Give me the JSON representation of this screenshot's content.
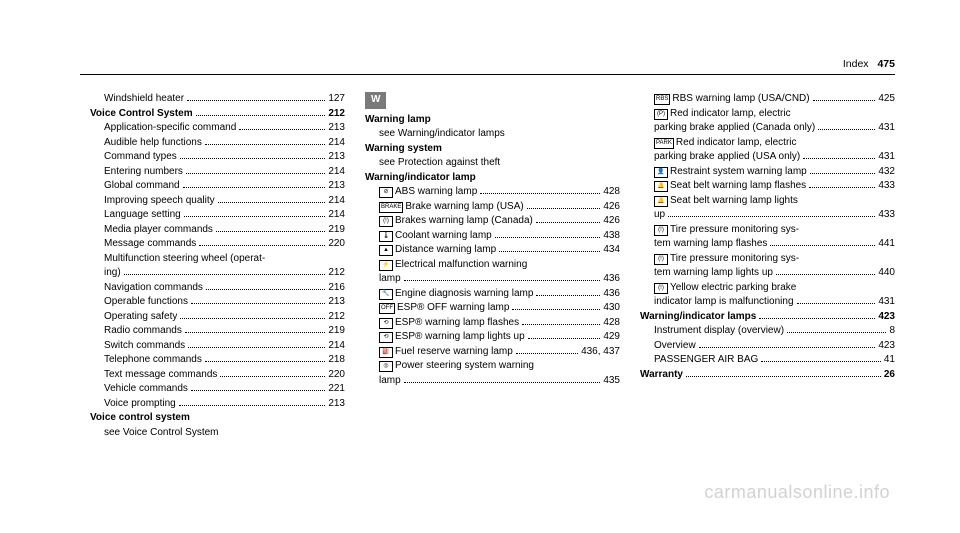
{
  "header": {
    "label": "Index",
    "pagenum": "475"
  },
  "watermark": "carmanualsonline.info",
  "col1": [
    {
      "lvl": "lvl2",
      "label": "Windshield heater",
      "page": "127"
    },
    {
      "lvl": "lvl1",
      "label": "Voice Control System",
      "page": "212"
    },
    {
      "lvl": "lvl2",
      "label": "Application-specific command",
      "page": "213"
    },
    {
      "lvl": "lvl2",
      "label": "Audible help functions",
      "page": "214"
    },
    {
      "lvl": "lvl2",
      "label": "Command types",
      "page": "213"
    },
    {
      "lvl": "lvl2",
      "label": "Entering numbers",
      "page": "214"
    },
    {
      "lvl": "lvl2",
      "label": "Global command",
      "page": "213"
    },
    {
      "lvl": "lvl2",
      "label": "Improving speech quality",
      "page": "214"
    },
    {
      "lvl": "lvl2",
      "label": "Language setting",
      "page": "214"
    },
    {
      "lvl": "lvl2",
      "label": "Media player commands",
      "page": "219"
    },
    {
      "lvl": "lvl2",
      "label": "Message commands",
      "page": "220"
    },
    {
      "lvl": "lvl2",
      "label2": "Multifunction steering wheel (operat-",
      "cont": "ing)",
      "page": "212"
    },
    {
      "lvl": "lvl2",
      "label": "Navigation commands",
      "page": "216"
    },
    {
      "lvl": "lvl2",
      "label": "Operable functions",
      "page": "213"
    },
    {
      "lvl": "lvl2",
      "label": "Operating safety",
      "page": "212"
    },
    {
      "lvl": "lvl2",
      "label": "Radio commands",
      "page": "219"
    },
    {
      "lvl": "lvl2",
      "label": "Switch commands",
      "page": "214"
    },
    {
      "lvl": "lvl2",
      "label": "Telephone commands",
      "page": "218"
    },
    {
      "lvl": "lvl2",
      "label": "Text message commands",
      "page": "220"
    },
    {
      "lvl": "lvl2",
      "label": "Vehicle commands",
      "page": "221"
    },
    {
      "lvl": "lvl2",
      "label": "Voice prompting",
      "page": "213"
    },
    {
      "lvl": "lvl1",
      "label": "Voice control system",
      "noPage": true
    },
    {
      "lvl": "see",
      "label": "see Voice Control System",
      "noPage": true
    }
  ],
  "letter": "W",
  "col2": [
    {
      "lvl": "lvl1",
      "label": "Warning lamp",
      "noPage": true
    },
    {
      "lvl": "see",
      "label": "see Warning/indicator lamps",
      "noPage": true
    },
    {
      "lvl": "lvl1",
      "label": "Warning system",
      "noPage": true
    },
    {
      "lvl": "see",
      "label": "see Protection against theft",
      "noPage": true
    },
    {
      "lvl": "lvl1",
      "label": "Warning/indicator lamp",
      "noPage": true
    },
    {
      "lvl": "lvl2",
      "icon": "⊘",
      "label": "ABS warning lamp",
      "page": "428"
    },
    {
      "lvl": "lvl2",
      "icon": "BRAKE",
      "label": "Brake warning lamp (USA)",
      "page": "426"
    },
    {
      "lvl": "lvl2",
      "icon": "(!)",
      "label": "Brakes warning lamp (Canada)",
      "page": "426"
    },
    {
      "lvl": "lvl2",
      "icon": "🌡",
      "label": "Coolant warning lamp",
      "page": "438"
    },
    {
      "lvl": "lvl2",
      "icon": "▲",
      "label": "Distance warning lamp",
      "page": "434"
    },
    {
      "lvl": "lvl2",
      "icon": "⚡",
      "label2": "Electrical malfunction warning",
      "cont": "lamp",
      "page": "436"
    },
    {
      "lvl": "lvl2",
      "icon": "🔧",
      "label": "Engine diagnosis warning lamp",
      "page": "436"
    },
    {
      "lvl": "lvl2",
      "icon": "OFF",
      "label": "ESP® OFF warning lamp",
      "page": "430"
    },
    {
      "lvl": "lvl2",
      "icon": "⟲",
      "label": "ESP® warning lamp flashes",
      "page": "428"
    },
    {
      "lvl": "lvl2",
      "icon": "⟲",
      "label": "ESP® warning lamp lights up",
      "page": "429"
    },
    {
      "lvl": "lvl2",
      "icon": "⛽",
      "label": "Fuel reserve warning lamp",
      "page": "436, 437"
    },
    {
      "lvl": "lvl2",
      "icon": "◎",
      "label2": "Power steering system warning",
      "cont": "lamp",
      "page": "435"
    }
  ],
  "col3": [
    {
      "lvl": "lvl2",
      "icon": "RBS",
      "label": "RBS warning lamp (USA/CND)",
      "page": "425"
    },
    {
      "lvl": "lvl2",
      "icon": "(P)",
      "label2": "Red indicator lamp, electric",
      "cont": "parking brake applied (Canada only)",
      "contlvl": "sub",
      "page": "431"
    },
    {
      "lvl": "lvl2",
      "icon": "PARK",
      "label2": "Red indicator lamp, electric",
      "cont": "parking brake applied (USA only)",
      "contlvl": "sub",
      "page": "431"
    },
    {
      "lvl": "lvl2",
      "icon": "👤",
      "label": "Restraint system warning lamp",
      "page": "432"
    },
    {
      "lvl": "lvl2",
      "icon": "🔔",
      "label": "Seat belt warning lamp flashes",
      "page": "433"
    },
    {
      "lvl": "lvl2",
      "icon": "🔔",
      "label2": "Seat belt warning lamp lights",
      "cont": "up",
      "contlvl": "sub",
      "page": "433"
    },
    {
      "lvl": "lvl2",
      "icon": "(!)",
      "label2": "Tire pressure monitoring sys-",
      "cont": "tem warning lamp flashes",
      "contlvl": "sub",
      "page": "441"
    },
    {
      "lvl": "lvl2",
      "icon": "(!)",
      "label2": "Tire pressure monitoring sys-",
      "cont": "tem warning lamp lights up",
      "contlvl": "sub",
      "page": "440"
    },
    {
      "lvl": "lvl2",
      "icon": "(!)",
      "label2": "Yellow electric parking brake",
      "cont": "indicator lamp is malfunctioning",
      "contlvl": "sub",
      "page": "431"
    },
    {
      "lvl": "lvl1",
      "label": "Warning/indicator lamps",
      "page": "423"
    },
    {
      "lvl": "lvl2",
      "label": "Instrument display (overview)",
      "page": "8"
    },
    {
      "lvl": "lvl2",
      "label": "Overview",
      "page": "423"
    },
    {
      "lvl": "lvl2",
      "label": "PASSENGER AIR BAG",
      "page": "41"
    },
    {
      "lvl": "lvl1",
      "label": "Warranty",
      "page": "26"
    }
  ]
}
